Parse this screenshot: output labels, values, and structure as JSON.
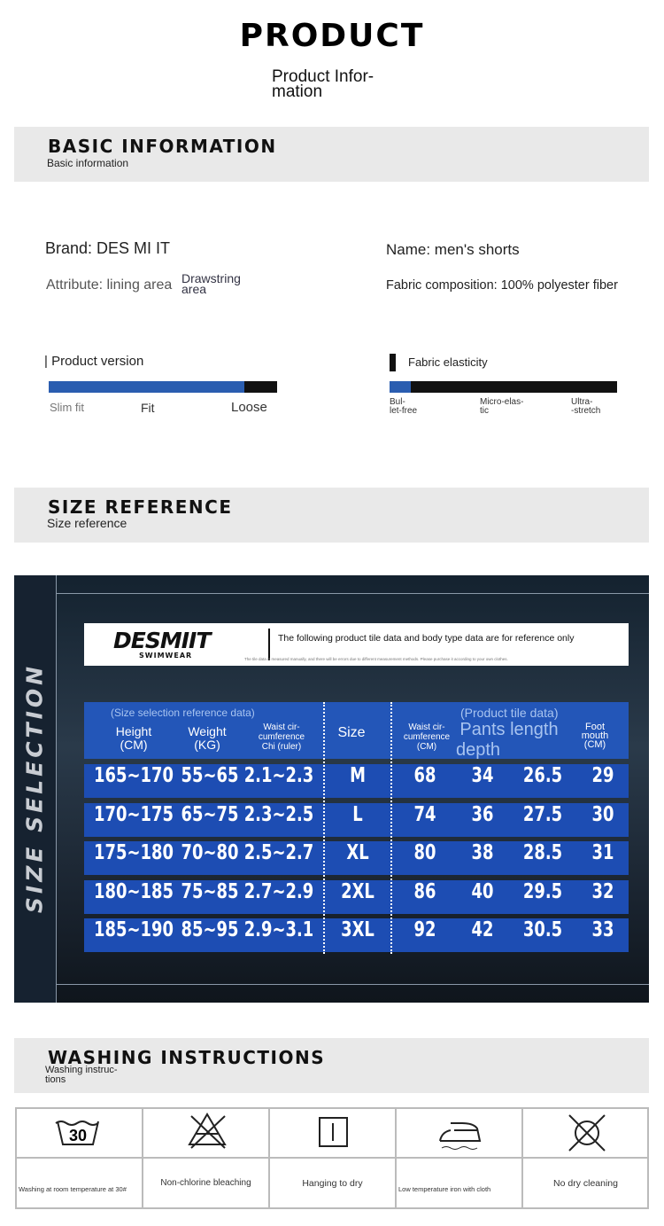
{
  "header": {
    "title": "PRODUCT",
    "subtitle": "Product Infor-\nmation"
  },
  "basic": {
    "title": "BASIC INFORMATION",
    "subtitle": "Basic information",
    "brand": "Brand: DES MI IT",
    "name": "Name: men's shorts",
    "attribute": "Attribute: lining area",
    "attribute_value": "Drawstring\narea",
    "fabric": "Fabric composition: 100% polyester fiber",
    "version": {
      "label": "| Product version",
      "scale": [
        "Slim fit",
        "Fit",
        "Loose"
      ]
    },
    "elasticity": {
      "label": "Fabric elasticity",
      "scale": [
        "Bul-\nlet-free",
        "Micro-elas-\ntic",
        "Ultra-\n-stretch"
      ]
    }
  },
  "size": {
    "title": "SIZE REFERENCE",
    "subtitle": "Size reference"
  },
  "size_chart": {
    "side_text": "SIZE SELECTION",
    "logo": "DESMIIT",
    "logo_sub": "SWIMWEAR",
    "note": "The following product tile data and body type data are for reference only",
    "fine_print": "The tile data is measured manually, and there will be errors due to different measurement methods. Please purchase it according to your own clothes.",
    "group_left": "(Size selection reference data)",
    "group_right": "(Product tile data)",
    "columns": [
      "Height\n(CM)",
      "Weight\n(KG)",
      "Waist cir-\ncumference\nChi (ruler)",
      "Size",
      "Waist cir-\ncumference\n(CM)",
      "Pants length",
      "depth",
      "Foot\nmouth\n(CM)"
    ],
    "rows": [
      [
        "165~170",
        "55~65",
        "2.1~2.3",
        "M",
        68,
        34,
        26.5,
        29
      ],
      [
        "170~175",
        "65~75",
        "2.3~2.5",
        "L",
        74,
        36,
        27.5,
        30
      ],
      [
        "175~180",
        "70~80",
        "2.5~2.7",
        "XL",
        80,
        38,
        28.5,
        31
      ],
      [
        "180~185",
        "75~85",
        "2.7~2.9",
        "2XL",
        86,
        40,
        29.5,
        32
      ],
      [
        "185~190",
        "85~95",
        "2.9~3.1",
        "3XL",
        92,
        42,
        30.5,
        33
      ]
    ]
  },
  "washing": {
    "title": "WASHING INSTRUCTIONS",
    "subtitle": "Washing instruc-\ntions",
    "icon_text": "30",
    "items": [
      "Washing at room temperature at 30#",
      "Non-chlorine bleaching",
      "Hanging to dry",
      "Low temperature iron with cloth",
      "No dry cleaning"
    ]
  }
}
